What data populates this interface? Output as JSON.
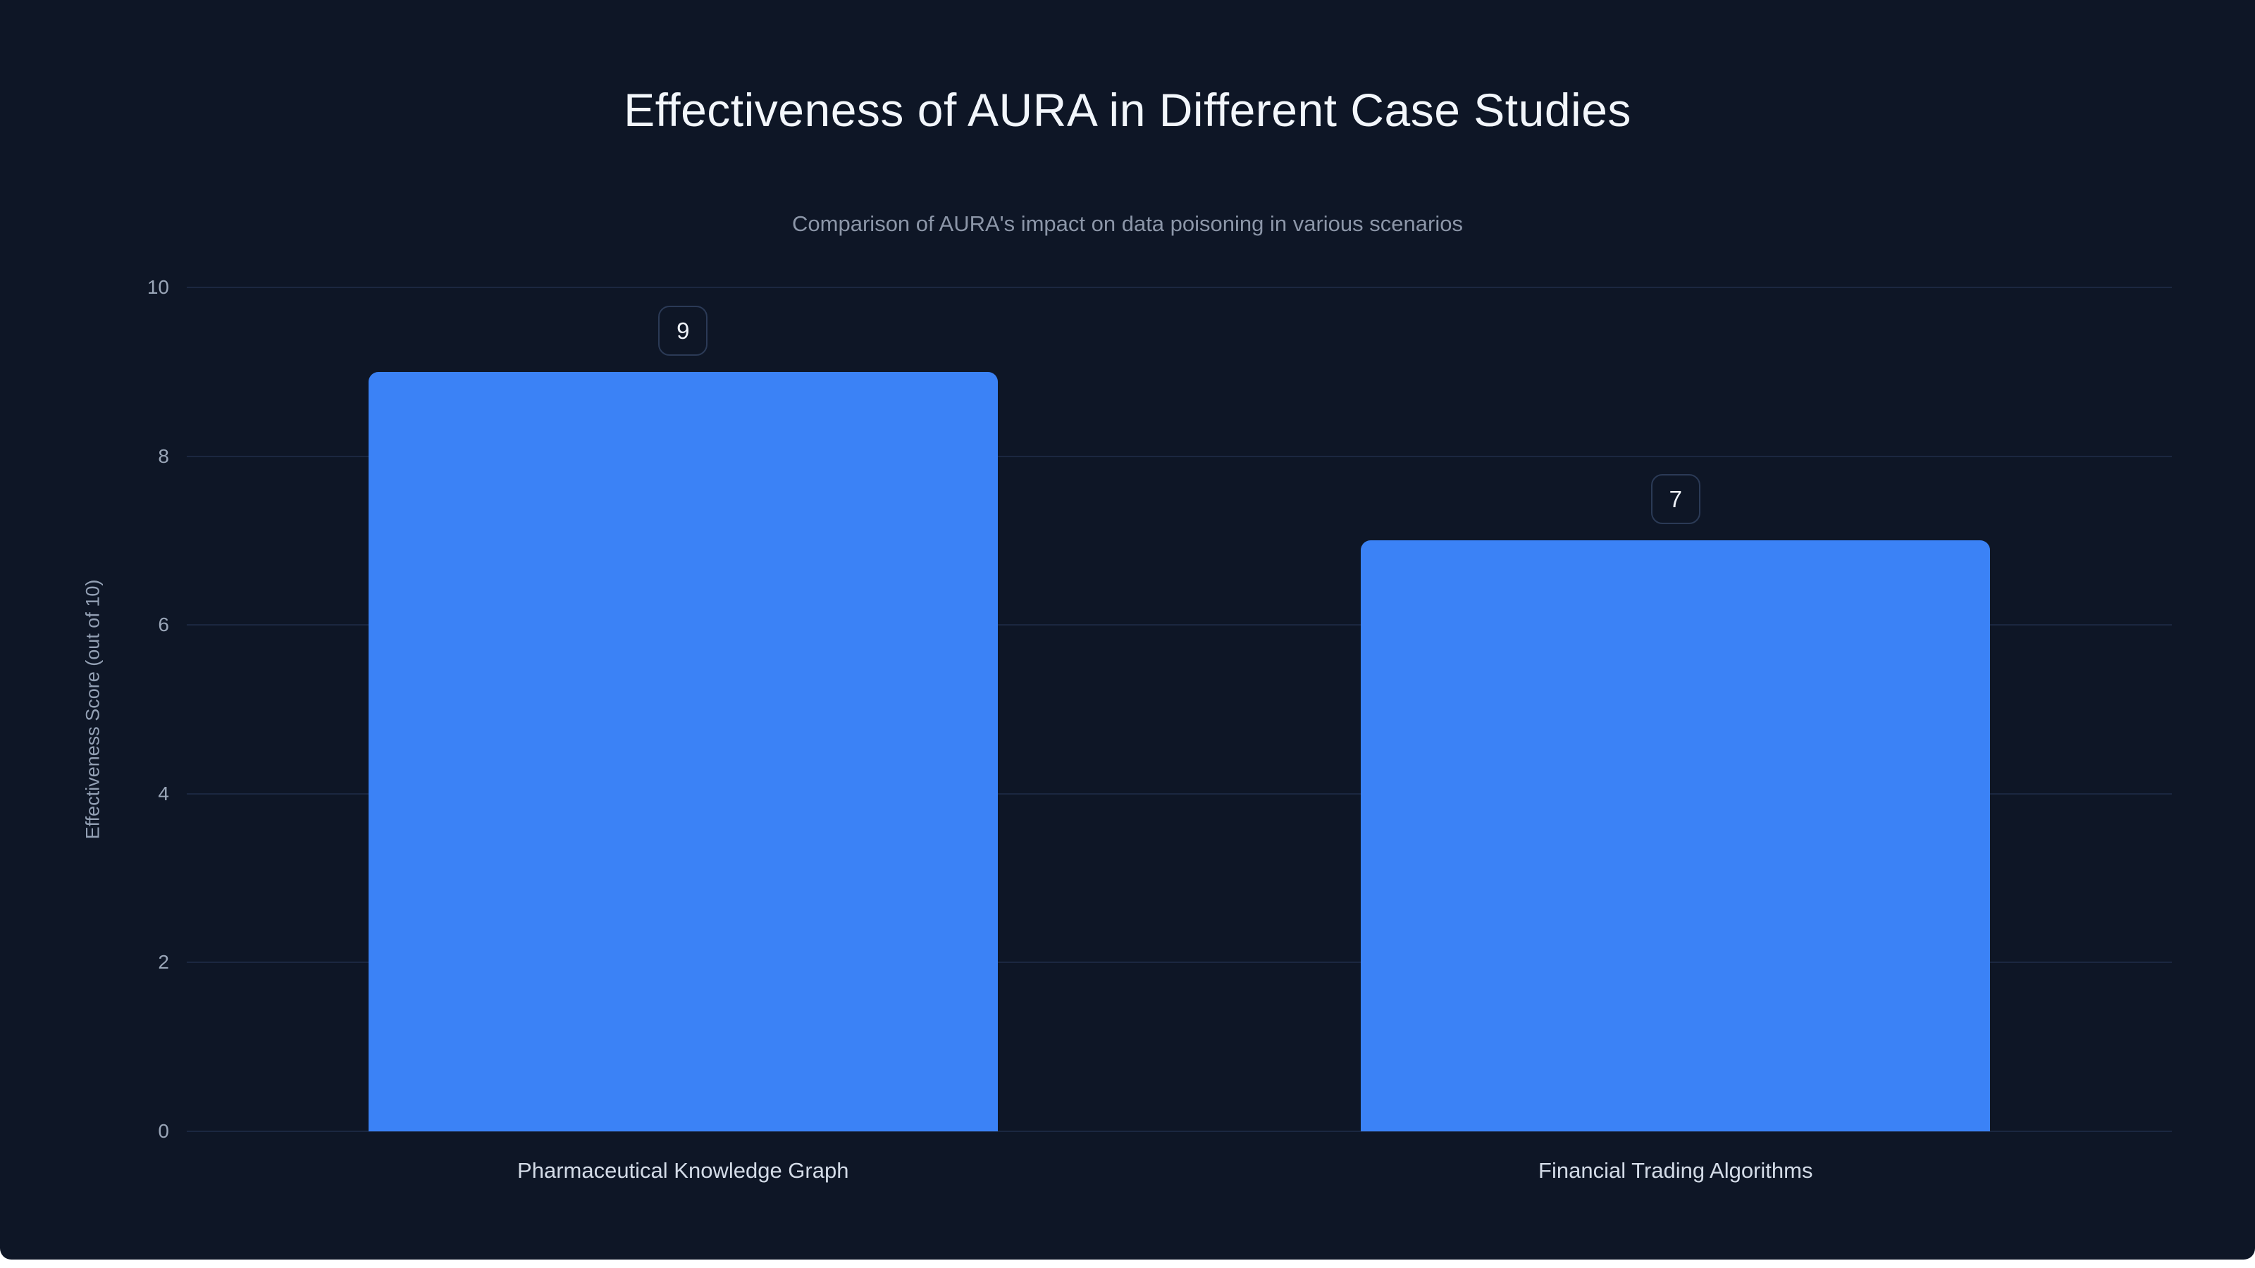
{
  "chart_data": {
    "type": "bar",
    "title": "Effectiveness of AURA in Different Case Studies",
    "subtitle": "Comparison of AURA's impact on data poisoning in various scenarios",
    "categories": [
      "Pharmaceutical Knowledge Graph",
      "Financial Trading Algorithms"
    ],
    "values": [
      9,
      7
    ],
    "value_labels": [
      "9",
      "7"
    ],
    "xlabel": "",
    "ylabel": "Effectiveness Score (out of 10)",
    "ylim": [
      0,
      10
    ],
    "yticks": [
      0,
      2,
      4,
      6,
      8,
      10
    ],
    "grid": true,
    "legend_position": "none",
    "colors": {
      "background": "#0e1626",
      "bar": "#3b82f6",
      "grid_line": "#1b2740",
      "title_text": "#f2f6fb",
      "subtitle_text": "#8c96a8",
      "tick_text": "#9aa6b8",
      "category_text": "#d3dbe7",
      "badge_border": "#2b3a56",
      "badge_text": "#eef2f8"
    }
  }
}
